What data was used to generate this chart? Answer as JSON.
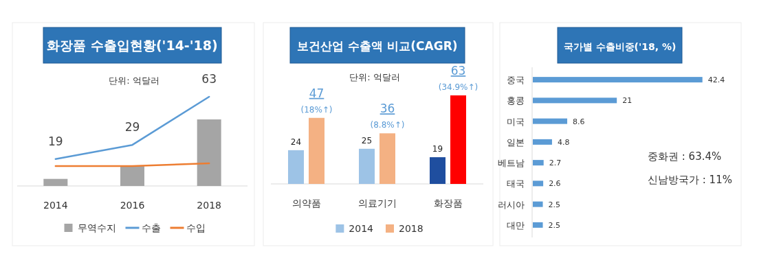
{
  "chart_data": [
    {
      "type": "bar",
      "title": "화장품 수출입현황('14-'18)",
      "categories": [
        "2014",
        "2016",
        "2018"
      ],
      "legend": "bottom",
      "annotations": [
        "단위: 억달러"
      ],
      "series": [
        {
          "name": "무역수지",
          "type": "bar",
          "color": "#a5a5a5",
          "values": [
            5,
            14,
            47
          ]
        },
        {
          "name": "수출",
          "type": "line",
          "color": "#5b9bd5",
          "values": [
            19,
            29,
            63
          ],
          "value_labels": [
            "19",
            "29",
            "63"
          ]
        },
        {
          "name": "수입",
          "type": "line",
          "color": "#ed7d31",
          "values": [
            14,
            14,
            16
          ]
        }
      ]
    },
    {
      "type": "bar",
      "title": "보건산업 수출액 비교(CAGR)",
      "categories": [
        "의약품",
        "의료기기",
        "화장품"
      ],
      "legend": "bottom",
      "data_labels": true,
      "annotations": [
        "단위: 억달러",
        {
          "text": "(18%↑)",
          "x": "의약품",
          "y": 47
        },
        {
          "text": "(8.8%↑)",
          "x": "의료기기",
          "y": 36
        },
        {
          "text": "(34.9%↑)",
          "x": "화장품",
          "y": 63
        }
      ],
      "series": [
        {
          "name": "2014",
          "color": "#9dc3e6",
          "colors": [
            "#9dc3e6",
            "#9dc3e6",
            "#1f4e9f"
          ],
          "values": [
            24,
            25,
            19
          ]
        },
        {
          "name": "2018",
          "color": "#f4b183",
          "colors": [
            "#f4b183",
            "#f4b183",
            "#ff0000"
          ],
          "values": [
            47,
            36,
            63
          ]
        }
      ]
    },
    {
      "type": "bar",
      "orientation": "horizontal",
      "title": "국가별 수출비중('18, %)",
      "categories": [
        "중국",
        "홍콩",
        "미국",
        "일본",
        "베트남",
        "태국",
        "러시아",
        "대만"
      ],
      "data_labels": true,
      "annotations": [
        "중화권 : 63.4%",
        "신남방국가 : 11%"
      ],
      "series": [
        {
          "color": "#5b9bd5",
          "values": [
            42.4,
            21,
            8.6,
            4.8,
            2.7,
            2.6,
            2.5,
            2.5
          ]
        }
      ]
    }
  ]
}
